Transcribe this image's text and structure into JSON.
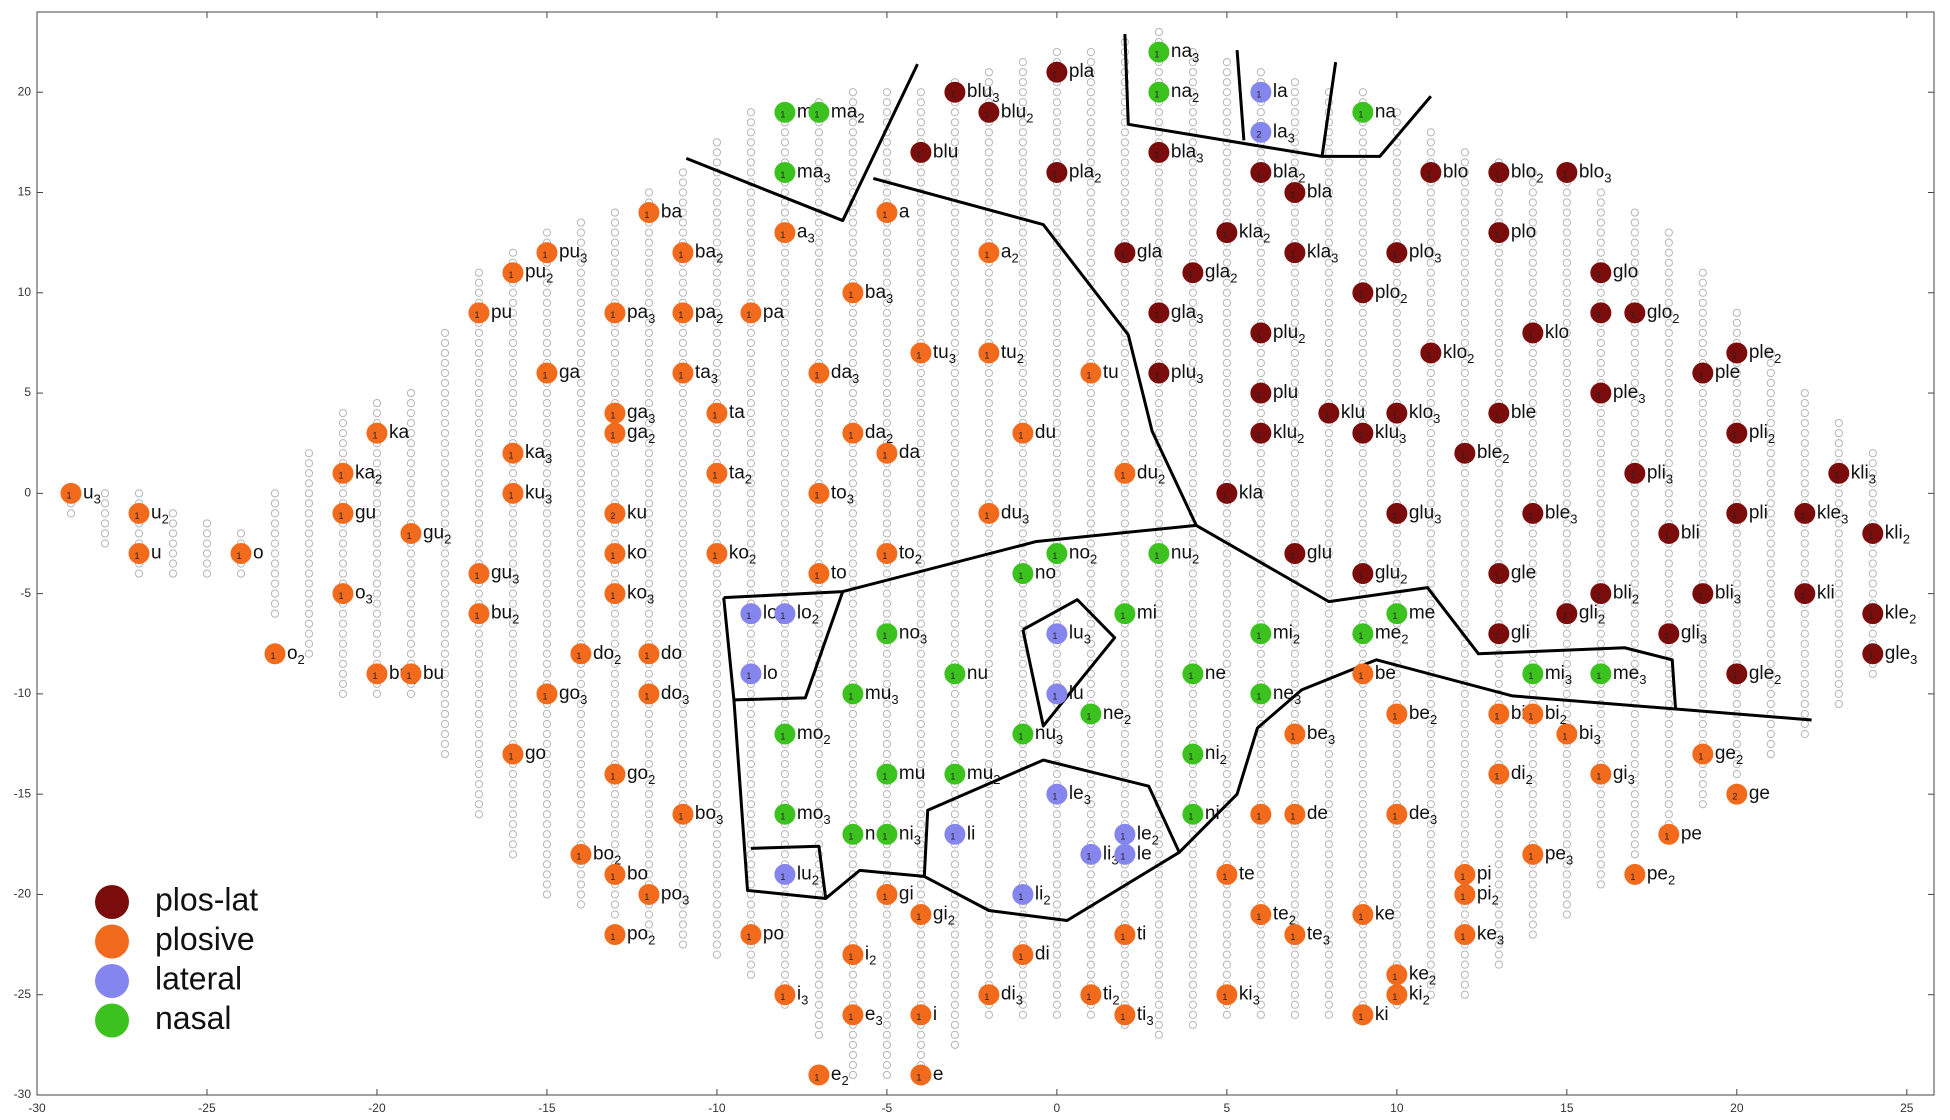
{
  "chart_data": {
    "type": "scatter",
    "xlim": [
      -30,
      25.8
    ],
    "ylim": [
      -30,
      24
    ],
    "xticks": [
      -30,
      -25,
      -20,
      -15,
      -10,
      -5,
      0,
      5,
      10,
      15,
      20,
      25
    ],
    "yticks": [
      -30,
      -25,
      -20,
      -15,
      -10,
      -5,
      0,
      5,
      10,
      15,
      20
    ],
    "legend": "lower left",
    "series": [
      {
        "name": "plos-lat",
        "color": "#7b0c0c",
        "x": [
          0,
          -3,
          -2,
          -4,
          0,
          3,
          6,
          7,
          11,
          13,
          15,
          5,
          13,
          2,
          7,
          10,
          4,
          16,
          9,
          3,
          16,
          17,
          6,
          14,
          11,
          20,
          3,
          19,
          6,
          16,
          8,
          10,
          13,
          6,
          9,
          20,
          12,
          17,
          23,
          5,
          10,
          14,
          20,
          22,
          18,
          24,
          7,
          9,
          13,
          16,
          19,
          22,
          15,
          24,
          13,
          18,
          24,
          20
        ],
        "y": [
          21,
          20,
          19,
          17,
          16,
          17,
          16,
          15,
          16,
          16,
          16,
          13,
          13,
          12,
          12,
          12,
          11,
          11,
          10,
          9,
          9,
          9,
          8,
          8,
          7,
          7,
          6,
          6,
          5,
          5,
          4,
          4,
          4,
          3,
          3,
          3,
          2,
          1,
          1,
          0,
          -1,
          -1,
          -1,
          -1,
          -2,
          -2,
          -3,
          -4,
          -4,
          -5,
          -5,
          -5,
          -6,
          -6,
          -7,
          -7,
          -8,
          -9
        ],
        "labels": [
          "pla",
          "blu",
          "blu",
          "blu",
          "pla",
          "bla",
          "bla",
          "bla",
          "blo",
          "blo",
          "blo",
          "kla",
          "plo",
          "gla",
          "kla",
          "plo",
          "gla",
          "glo",
          "plo",
          "gla",
          null,
          "glo",
          "plu",
          "klo",
          "klo",
          "ple",
          "plu",
          "ple",
          "plu",
          "ple",
          "klu",
          "klo",
          "ble",
          "klu",
          "klu",
          "pli",
          "ble",
          "pli",
          "kli",
          "kla",
          "glu",
          "ble",
          "pli",
          "kle",
          "bli",
          "kli",
          "glu",
          "glu",
          "gle",
          "bli",
          "bli",
          "kli",
          "gli",
          "kle",
          "gli",
          "gli",
          "gle",
          "gle"
        ],
        "subs": [
          null,
          "3",
          "2",
          null,
          "2",
          "3",
          "2",
          null,
          null,
          "2",
          "3",
          "2",
          null,
          null,
          "3",
          "3",
          "2",
          null,
          "2",
          "3",
          null,
          "2",
          "2",
          null,
          "2",
          "2",
          "3",
          null,
          null,
          "3",
          null,
          "3",
          null,
          "2",
          "3",
          "2",
          "2",
          "3",
          "3",
          null,
          "3",
          "3",
          null,
          "3",
          null,
          "2",
          null,
          "2",
          null,
          "2",
          "3",
          null,
          "2",
          "2",
          null,
          "3",
          "3",
          "2"
        ],
        "counts": [
          1,
          1,
          1,
          1,
          1,
          1,
          1,
          1,
          1,
          1,
          1,
          1,
          1,
          1,
          1,
          1,
          1,
          1,
          1,
          1,
          1,
          1,
          1,
          1,
          1,
          1,
          1,
          1,
          1,
          1,
          1,
          1,
          1,
          1,
          1,
          1,
          1,
          1,
          1,
          1,
          1,
          1,
          1,
          1,
          1,
          1,
          1,
          1,
          1,
          1,
          1,
          1,
          1,
          1,
          1,
          1,
          1,
          1
        ]
      },
      {
        "name": "plosive",
        "color": "#f26a1b",
        "x": [
          -29,
          -27,
          -27,
          -24,
          -23,
          -20,
          -21,
          -21,
          -19,
          -21,
          -20,
          -19,
          -17,
          -16,
          -15,
          -15,
          -16,
          -16,
          -17,
          -17,
          -16,
          -12,
          -11,
          -13,
          -11,
          -9,
          -11,
          -13,
          -13,
          -10,
          -10,
          -13,
          -13,
          -10,
          -13,
          -14,
          -12,
          -15,
          -12,
          -13,
          -11,
          -14,
          -13,
          -12,
          -13,
          -9,
          -8,
          -5,
          -6,
          -2,
          -4,
          -2,
          -7,
          1,
          -6,
          -5,
          -1,
          2,
          -7,
          -2,
          -5,
          -7,
          -5,
          -4,
          -6,
          -1,
          2,
          -8,
          -6,
          -4,
          -2,
          1,
          2,
          -7,
          -4,
          5,
          6,
          7,
          5,
          9,
          9,
          10,
          10,
          12,
          12,
          12,
          9,
          10,
          7,
          13,
          14,
          15,
          13,
          16,
          19,
          20,
          18,
          17,
          14,
          10,
          6,
          7
        ],
        "y": [
          0,
          -1,
          -3,
          -3,
          -8,
          3,
          1,
          -1,
          -2,
          -5,
          -9,
          -9,
          9,
          11,
          12,
          6,
          2,
          0,
          -4,
          -6,
          -13,
          14,
          12,
          9,
          9,
          9,
          6,
          4,
          3,
          4,
          1,
          -1,
          -3,
          -3,
          -5,
          -8,
          -8,
          -10,
          -10,
          -14,
          -16,
          -18,
          -19,
          -20,
          -22,
          -22,
          13,
          14,
          10,
          12,
          7,
          7,
          6,
          6,
          3,
          2,
          3,
          1,
          0,
          -1,
          -3,
          -4,
          -20,
          -21,
          -23,
          -23,
          -22,
          -25,
          -26,
          -26,
          -25,
          -25,
          -26,
          -29,
          -29,
          -19,
          -21,
          -22,
          -25,
          -26,
          -21,
          -24,
          -25,
          -22,
          -19,
          -20,
          -9,
          -11,
          -12,
          -11,
          -11,
          -12,
          -14,
          -14,
          -13,
          -15,
          -17,
          -19,
          -18,
          -16,
          -16,
          -16
        ],
        "labels": [
          "u",
          "u",
          "u",
          "o",
          "o",
          "ka",
          "ka",
          "gu",
          "gu",
          "o",
          "bu",
          "bu",
          "pu",
          "pu",
          "pu",
          "ga",
          "ka",
          "ku",
          "gu",
          "bu",
          "go",
          "ba",
          "ba",
          "pa",
          "pa",
          "pa",
          "ta",
          "ga",
          "ga",
          "ta",
          "ta",
          "ku",
          "ko",
          "ko",
          "ko",
          "do",
          "do",
          "go",
          "do",
          "go",
          "bo",
          "bo",
          "bo",
          "po",
          "po",
          "po",
          "a",
          "a",
          "ba",
          "a",
          "tu",
          "tu",
          "da",
          "tu",
          "da",
          "da",
          "du",
          "du",
          "to",
          "du",
          "to",
          "to",
          "gi",
          "gi",
          "i",
          "di",
          "ti",
          "i",
          "e",
          "i",
          "di",
          "ti",
          "ti",
          "e",
          "e",
          "te",
          "te",
          "te",
          "ki",
          "ki",
          "ke",
          "ke",
          "ki",
          "ke",
          "pi",
          "pi",
          "be",
          "be",
          "be",
          "bi",
          "bi",
          "bi",
          "di",
          "gi",
          "ge",
          "ge",
          "pe",
          "pe",
          "pe",
          "de",
          null,
          "de"
        ],
        "subs": [
          "3",
          "2",
          null,
          null,
          "2",
          null,
          "2",
          null,
          "2",
          "3",
          "3",
          null,
          null,
          "2",
          "3",
          null,
          "3",
          "3",
          "3",
          "2",
          null,
          null,
          "2",
          "3",
          "2",
          null,
          "3",
          "3",
          "2",
          null,
          "2",
          null,
          null,
          "2",
          "3",
          "2",
          null,
          "3",
          "3",
          "2",
          "3",
          "2",
          null,
          "3",
          "2",
          null,
          "3",
          null,
          "3",
          "2",
          "3",
          "2",
          "3",
          null,
          "2",
          null,
          null,
          "2",
          "3",
          "3",
          "2",
          null,
          null,
          "2",
          "2",
          null,
          null,
          "3",
          "3",
          null,
          "3",
          "2",
          "3",
          "2",
          null,
          null,
          "2",
          "3",
          "3",
          null,
          null,
          "2",
          "2",
          "3",
          null,
          "2",
          null,
          "2",
          "3",
          null,
          "2",
          "3",
          "2",
          "3",
          "2",
          null,
          null,
          "2",
          "3",
          "3",
          null,
          null
        ],
        "counts": [
          1,
          1,
          1,
          1,
          1,
          1,
          1,
          1,
          1,
          1,
          1,
          1,
          1,
          1,
          1,
          1,
          1,
          1,
          1,
          1,
          1,
          1,
          1,
          1,
          1,
          1,
          1,
          1,
          1,
          1,
          1,
          2,
          1,
          1,
          1,
          1,
          1,
          1,
          1,
          1,
          1,
          1,
          1,
          1,
          1,
          1,
          1,
          1,
          1,
          1,
          1,
          1,
          1,
          1,
          1,
          1,
          1,
          1,
          1,
          1,
          1,
          1,
          1,
          1,
          1,
          1,
          1,
          1,
          1,
          1,
          1,
          1,
          1,
          1,
          1,
          1,
          1,
          1,
          1,
          1,
          1,
          1,
          1,
          1,
          1,
          1,
          1,
          1,
          1,
          1,
          1,
          1,
          1,
          1,
          1,
          2,
          1,
          1,
          1,
          1,
          1,
          1
        ]
      },
      {
        "name": "lateral",
        "color": "#8585ee",
        "x": [
          6,
          6,
          -9,
          -8,
          -9,
          0,
          0,
          0,
          -3,
          2,
          1,
          2,
          -1,
          -8
        ],
        "y": [
          20,
          18,
          -6,
          -6,
          -9,
          -7,
          -10,
          -15,
          -17,
          -17,
          -18,
          -18,
          -20,
          -19
        ],
        "labels": [
          "la",
          "la",
          "lo",
          "lo",
          "lo",
          "lu",
          "lu",
          "le",
          "li",
          "le",
          "li",
          "le",
          "li",
          "lu"
        ],
        "subs": [
          null,
          "3",
          "3",
          "2",
          null,
          "3",
          null,
          "3",
          null,
          "2",
          "3",
          null,
          "2",
          "2"
        ],
        "counts": [
          1,
          2,
          1,
          1,
          1,
          1,
          1,
          1,
          1,
          1,
          1,
          1,
          1,
          1
        ]
      },
      {
        "name": "nasal",
        "color": "#3cc21e",
        "x": [
          3,
          3,
          9,
          -8,
          -7,
          -8,
          0,
          -1,
          3,
          2,
          -5,
          6,
          9,
          10,
          -3,
          -6,
          4,
          6,
          14,
          16,
          1,
          -1,
          -8,
          4,
          -5,
          -3,
          -8,
          4,
          -6,
          -5
        ],
        "y": [
          22,
          20,
          19,
          19,
          19,
          16,
          -3,
          -4,
          -3,
          -6,
          -7,
          -7,
          -7,
          -6,
          -9,
          -10,
          -9,
          -10,
          -9,
          -9,
          -11,
          -12,
          -12,
          -13,
          -14,
          -14,
          -16,
          -16,
          -17,
          -17
        ],
        "labels": [
          "na",
          "na",
          "na",
          "ma",
          "ma",
          "ma",
          "no",
          "no",
          "nu",
          "mi",
          "no",
          "mi",
          "me",
          "me",
          "nu",
          "mu",
          "ne",
          "ne",
          "mi",
          "me",
          "ne",
          "nu",
          "mo",
          "ni",
          "mu",
          "mu",
          "mo",
          "ni",
          "n",
          "ni"
        ],
        "subs": [
          "3",
          "2",
          null,
          null,
          "2",
          "3",
          "2",
          null,
          "2",
          null,
          "3",
          "2",
          "2",
          null,
          null,
          "3",
          null,
          "3",
          "3",
          "3",
          "2",
          "3",
          "2",
          "2",
          null,
          "2",
          "3",
          null,
          null,
          "3"
        ],
        "counts": [
          1,
          1,
          1,
          1,
          1,
          1,
          1,
          1,
          1,
          1,
          1,
          1,
          1,
          1,
          1,
          1,
          1,
          1,
          1,
          1,
          1,
          1,
          1,
          1,
          1,
          1,
          1,
          1,
          1,
          1
        ]
      }
    ],
    "boundaries": [
      {
        "x": [
          -10.9,
          -6.3,
          -4.1
        ],
        "y": [
          16.7,
          13.6,
          21.4
        ]
      },
      {
        "x": [
          -5.4,
          -0.4,
          2.1,
          2.8,
          4.1,
          8.0,
          10.9,
          12.4,
          16.7,
          18.1,
          18.2
        ],
        "y": [
          15.7,
          13.4,
          7.9,
          3.1,
          -1.6,
          -5.4,
          -4.7,
          -8.0,
          -7.7,
          -8.3,
          -10.8
        ]
      },
      {
        "x": [
          -9.8,
          -6.3,
          -0.6,
          4.1
        ],
        "y": [
          -5.2,
          -4.9,
          -2.4,
          -1.6
        ]
      },
      {
        "x": [
          22.2,
          13.4,
          9.4,
          7.2,
          5.9,
          5.3,
          3.6,
          0.3,
          -2.0,
          -3.9,
          -3.8,
          -0.4,
          2.7,
          3.6
        ],
        "y": [
          -11.3,
          -10.1,
          -8.3,
          -9.8,
          -11.7,
          -15.0,
          -17.9,
          -21.3,
          -20.8,
          -19.1,
          -15.8,
          -13.3,
          -14.6,
          -17.9
        ]
      },
      {
        "x": [
          -9.8,
          -9.5,
          -9.1,
          -6.8,
          -5.8,
          -3.9
        ],
        "y": [
          -5.2,
          -10.3,
          -19.8,
          -20.2,
          -18.8,
          -19.1
        ]
      },
      {
        "x": [
          -9.0,
          -7.0,
          -6.8
        ],
        "y": [
          -17.7,
          -17.6,
          -20.2
        ]
      },
      {
        "x": [
          -9.5,
          -7.4,
          -6.3
        ],
        "y": [
          -10.3,
          -10.2,
          -4.9
        ]
      },
      {
        "x": [
          -1.0,
          0.6,
          1.7,
          -0.4,
          -1.0
        ],
        "y": [
          -6.8,
          -5.3,
          -7.2,
          -11.6,
          -6.8
        ]
      },
      {
        "x": [
          2.0,
          2.1,
          7.8,
          9.5,
          11.0
        ],
        "y": [
          22.9,
          18.4,
          16.8,
          16.8,
          19.8
        ]
      },
      {
        "x": [
          5.3,
          5.5
        ],
        "y": [
          22.1,
          17.6
        ]
      },
      {
        "x": [
          8.2,
          7.8
        ],
        "y": [
          21.5,
          16.8
        ]
      }
    ]
  }
}
